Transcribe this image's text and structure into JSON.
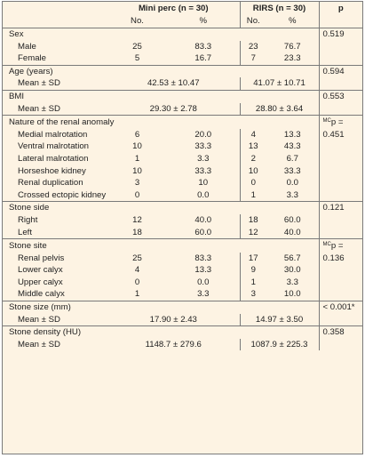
{
  "header": {
    "mini_perc": "Mini perc (n = 30)",
    "rirs": "RIRS (n = 30)",
    "p": "p",
    "no_1": "No.",
    "pct_1": "%",
    "no_2": "No.",
    "pct_2": "%"
  },
  "sex": {
    "label": "Sex",
    "p": "0.519",
    "rows": [
      {
        "label": "Male",
        "mp_no": "25",
        "mp_pct": "83.3",
        "rirs_no": "23",
        "rirs_pct": "76.7"
      },
      {
        "label": "Female",
        "mp_no": "5",
        "mp_pct": "16.7",
        "rirs_no": "7",
        "rirs_pct": "23.3"
      }
    ]
  },
  "age": {
    "label": "Age (years)",
    "p": "0.594",
    "mean_label": "Mean ± SD",
    "mp": "42.53 ± 10.47",
    "rirs": "41.07 ± 10.71"
  },
  "bmi": {
    "label": "BMI",
    "p": "0.553",
    "mean_label": "Mean ± SD",
    "mp": "29.30 ± 2.78",
    "rirs": "28.80 ± 3.64"
  },
  "anomaly": {
    "label": "Nature of the renal anomaly",
    "p_prefix": "MC",
    "p_main": "p =",
    "p_value": "0.451",
    "rows": [
      {
        "label": "Medial malrotation",
        "mp_no": "6",
        "mp_pct": "20.0",
        "rirs_no": "4",
        "rirs_pct": "13.3"
      },
      {
        "label": "Ventral malrotation",
        "mp_no": "10",
        "mp_pct": "33.3",
        "rirs_no": "13",
        "rirs_pct": "43.3"
      },
      {
        "label": "Lateral malrotation",
        "mp_no": "1",
        "mp_pct": "3.3",
        "rirs_no": "2",
        "rirs_pct": "6.7"
      },
      {
        "label": "Horseshoe kidney",
        "mp_no": "10",
        "mp_pct": "33.3",
        "rirs_no": "10",
        "rirs_pct": "33.3"
      },
      {
        "label": "Renal duplication",
        "mp_no": "3",
        "mp_pct": "10",
        "rirs_no": "0",
        "rirs_pct": "0.0"
      },
      {
        "label": "Crossed ectopic kidney",
        "mp_no": "0",
        "mp_pct": "0.0",
        "rirs_no": "1",
        "rirs_pct": "3.3"
      }
    ]
  },
  "stone_side": {
    "label": "Stone side",
    "p": "0.121",
    "rows": [
      {
        "label": "Right",
        "mp_no": "12",
        "mp_pct": "40.0",
        "rirs_no": "18",
        "rirs_pct": "60.0"
      },
      {
        "label": "Left",
        "mp_no": "18",
        "mp_pct": "60.0",
        "rirs_no": "12",
        "rirs_pct": "40.0"
      }
    ]
  },
  "stone_site": {
    "label": "Stone site",
    "p_prefix": "MC",
    "p_main": "p =",
    "p_value": "0.136",
    "rows": [
      {
        "label": "Renal pelvis",
        "mp_no": "25",
        "mp_pct": "83.3",
        "rirs_no": "17",
        "rirs_pct": "56.7"
      },
      {
        "label": "Lower calyx",
        "mp_no": "4",
        "mp_pct": "13.3",
        "rirs_no": "9",
        "rirs_pct": "30.0"
      },
      {
        "label": "Upper calyx",
        "mp_no": "0",
        "mp_pct": "0.0",
        "rirs_no": "1",
        "rirs_pct": "3.3"
      },
      {
        "label": "Middle calyx",
        "mp_no": "1",
        "mp_pct": "3.3",
        "rirs_no": "3",
        "rirs_pct": "10.0"
      }
    ]
  },
  "stone_size": {
    "label": "Stone size (mm)",
    "p": "< 0.001*",
    "mean_label": "Mean ± SD",
    "mp": "17.90 ± 2.43",
    "rirs": "14.97 ± 3.50"
  },
  "stone_density": {
    "label": "Stone density (HU)",
    "p": "0.358",
    "mean_label": "Mean ± SD",
    "mp": "1148.7 ± 279.6",
    "rirs": "1087.9 ± 225.3"
  }
}
